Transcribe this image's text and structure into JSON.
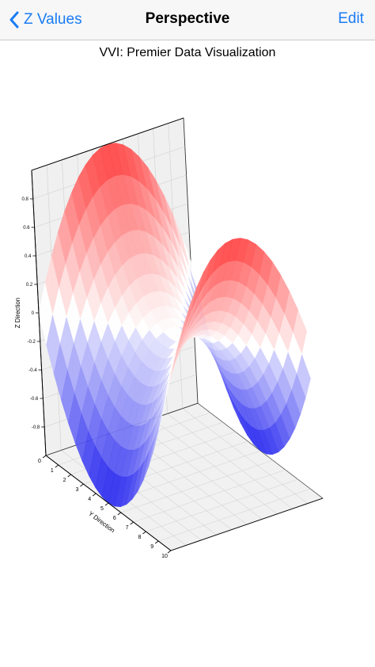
{
  "navbar": {
    "back_label": "Z Values",
    "title": "Perspective",
    "edit_label": "Edit"
  },
  "chart_data": {
    "type": "surface3d",
    "title": "VVI: Premier Data Visualization",
    "xlabel": "",
    "ylabel": "Y Direction",
    "zlabel": "Z Direction",
    "y_ticks": [
      "0",
      "1",
      "2",
      "3",
      "4",
      "5",
      "6",
      "7",
      "8",
      "9",
      "10"
    ],
    "z_ticks": [
      "0.8",
      "0.6",
      "0.4",
      "0.2",
      "0",
      "-0.2",
      "-0.4",
      "-0.6",
      "-0.8"
    ],
    "zlim": [
      -1,
      1
    ],
    "grid": true,
    "colors": {
      "low": "#1a1aee",
      "high": "#ff3333",
      "mid": "#ffffff"
    }
  }
}
